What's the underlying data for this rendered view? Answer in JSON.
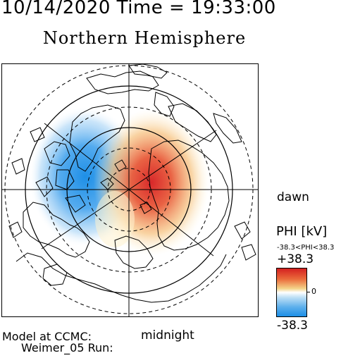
{
  "header": {
    "timestamp": "10/14/2020 Time = 19:33:00",
    "title": "Northern Hemisphere"
  },
  "map": {
    "orientation_labels": {
      "right": "dawn",
      "bottom": "midnight"
    },
    "projection": "polar",
    "potential_pattern": {
      "dawn_cell": "positive (red)",
      "dusk_cell": "negative (blue)"
    }
  },
  "colorbar": {
    "title": "PHI [kV]",
    "range_text": "-38.3<PHI<38.3",
    "max_label": "+38.3",
    "zero_label": "0",
    "min_label": "-38.3",
    "colors": {
      "max": "#d42020",
      "mid": "#ffffff",
      "min": "#1c8ee6"
    }
  },
  "credits": {
    "line1": "Model at CCMC:",
    "line2": "Weimer_05 Run:"
  }
}
